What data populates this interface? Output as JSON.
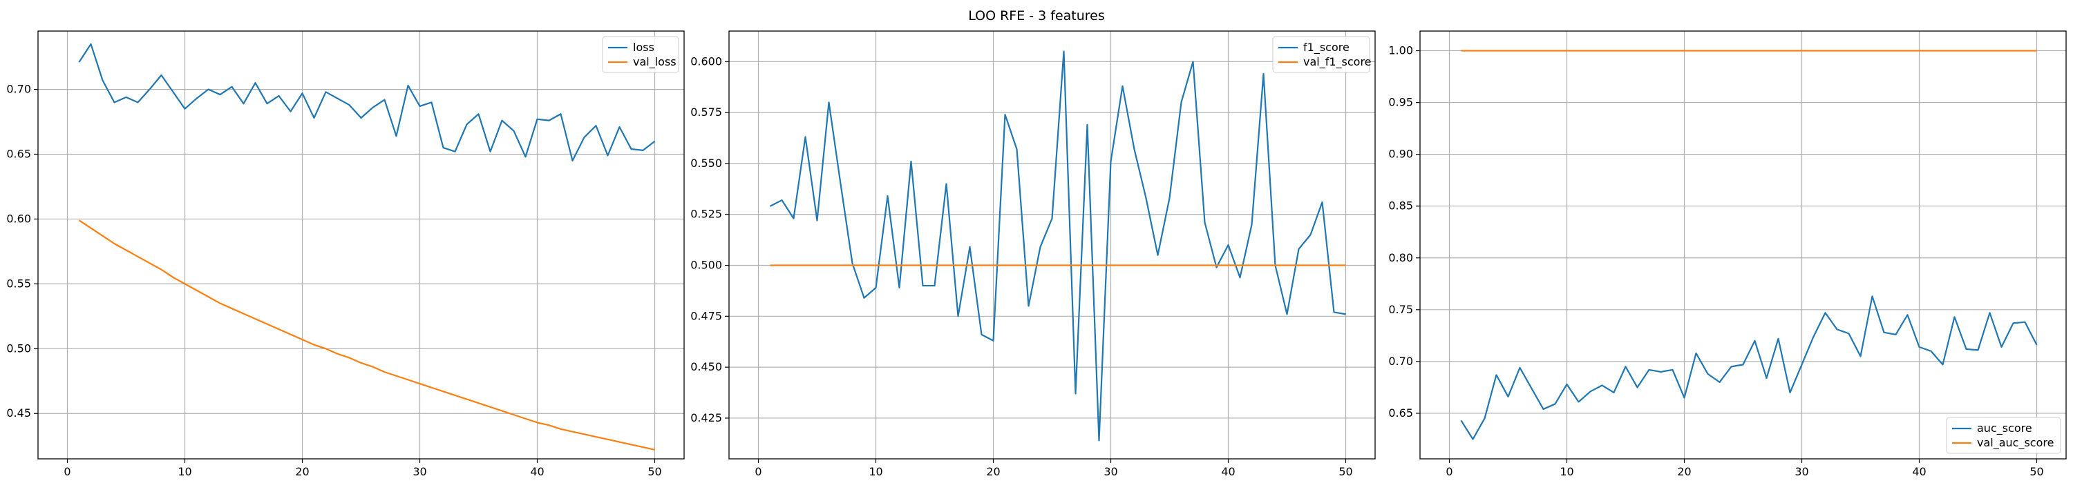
{
  "figure": {
    "title": "LOO RFE - 3 features"
  },
  "chart_data": [
    {
      "type": "line",
      "title": "",
      "xlabel": "",
      "ylabel": "",
      "xlim": [
        -2.5,
        52.5
      ],
      "ylim": [
        0.415,
        0.745
      ],
      "xticks": [
        0,
        10,
        20,
        30,
        40,
        50
      ],
      "yticks": [
        0.45,
        0.5,
        0.55,
        0.6,
        0.65,
        0.7
      ],
      "ytick_format": 2,
      "grid": true,
      "legend": "upper right",
      "x": [
        1,
        2,
        3,
        4,
        5,
        6,
        7,
        8,
        9,
        10,
        11,
        12,
        13,
        14,
        15,
        16,
        17,
        18,
        19,
        20,
        21,
        22,
        23,
        24,
        25,
        26,
        27,
        28,
        29,
        30,
        31,
        32,
        33,
        34,
        35,
        36,
        37,
        38,
        39,
        40,
        41,
        42,
        43,
        44,
        45,
        46,
        47,
        48,
        49,
        50
      ],
      "series": [
        {
          "name": "loss",
          "color": "#1f77b4",
          "values": [
            0.721,
            0.735,
            0.707,
            0.69,
            0.694,
            0.69,
            0.7,
            0.711,
            0.698,
            0.685,
            0.693,
            0.7,
            0.696,
            0.702,
            0.689,
            0.705,
            0.689,
            0.695,
            0.683,
            0.697,
            0.678,
            0.698,
            0.693,
            0.688,
            0.678,
            0.686,
            0.692,
            0.664,
            0.703,
            0.687,
            0.69,
            0.655,
            0.652,
            0.673,
            0.681,
            0.652,
            0.676,
            0.668,
            0.648,
            0.677,
            0.676,
            0.681,
            0.645,
            0.663,
            0.672,
            0.649,
            0.671,
            0.654,
            0.653,
            0.66
          ]
        },
        {
          "name": "val_loss",
          "color": "#ff7f0e",
          "values": [
            0.599,
            0.593,
            0.587,
            0.581,
            0.576,
            0.571,
            0.566,
            0.561,
            0.555,
            0.55,
            0.545,
            0.54,
            0.535,
            0.531,
            0.527,
            0.523,
            0.519,
            0.515,
            0.511,
            0.507,
            0.503,
            0.5,
            0.496,
            0.493,
            0.489,
            0.486,
            0.482,
            0.479,
            0.476,
            0.473,
            0.47,
            0.467,
            0.464,
            0.461,
            0.458,
            0.455,
            0.452,
            0.449,
            0.446,
            0.443,
            0.441,
            0.438,
            0.436,
            0.434,
            0.432,
            0.43,
            0.428,
            0.426,
            0.424,
            0.422
          ]
        }
      ]
    },
    {
      "type": "line",
      "title": "",
      "xlabel": "",
      "ylabel": "",
      "xlim": [
        -2.5,
        52.5
      ],
      "ylim": [
        0.405,
        0.615
      ],
      "xticks": [
        0,
        10,
        20,
        30,
        40,
        50
      ],
      "yticks": [
        0.425,
        0.45,
        0.475,
        0.5,
        0.525,
        0.55,
        0.575,
        0.6
      ],
      "ytick_format": 3,
      "grid": true,
      "legend": "upper right",
      "x": [
        1,
        2,
        3,
        4,
        5,
        6,
        7,
        8,
        9,
        10,
        11,
        12,
        13,
        14,
        15,
        16,
        17,
        18,
        19,
        20,
        21,
        22,
        23,
        24,
        25,
        26,
        27,
        28,
        29,
        30,
        31,
        32,
        33,
        34,
        35,
        36,
        37,
        38,
        39,
        40,
        41,
        42,
        43,
        44,
        45,
        46,
        47,
        48,
        49,
        50
      ],
      "series": [
        {
          "name": "f1_score",
          "color": "#1f77b4",
          "values": [
            0.529,
            0.532,
            0.523,
            0.563,
            0.522,
            0.58,
            0.54,
            0.501,
            0.484,
            0.489,
            0.534,
            0.489,
            0.551,
            0.49,
            0.49,
            0.54,
            0.475,
            0.509,
            0.466,
            0.463,
            0.574,
            0.557,
            0.48,
            0.509,
            0.523,
            0.605,
            0.437,
            0.569,
            0.414,
            0.551,
            0.588,
            0.557,
            0.533,
            0.505,
            0.533,
            0.58,
            0.6,
            0.521,
            0.499,
            0.51,
            0.494,
            0.52,
            0.594,
            0.5,
            0.476,
            0.508,
            0.515,
            0.531,
            0.477,
            0.476
          ]
        },
        {
          "name": "val_f1_score",
          "color": "#ff7f0e",
          "values": [
            0.5,
            0.5,
            0.5,
            0.5,
            0.5,
            0.5,
            0.5,
            0.5,
            0.5,
            0.5,
            0.5,
            0.5,
            0.5,
            0.5,
            0.5,
            0.5,
            0.5,
            0.5,
            0.5,
            0.5,
            0.5,
            0.5,
            0.5,
            0.5,
            0.5,
            0.5,
            0.5,
            0.5,
            0.5,
            0.5,
            0.5,
            0.5,
            0.5,
            0.5,
            0.5,
            0.5,
            0.5,
            0.5,
            0.5,
            0.5,
            0.5,
            0.5,
            0.5,
            0.5,
            0.5,
            0.5,
            0.5,
            0.5,
            0.5,
            0.5
          ]
        }
      ]
    },
    {
      "type": "line",
      "title": "",
      "xlabel": "",
      "ylabel": "",
      "xlim": [
        -2.5,
        52.5
      ],
      "ylim": [
        0.606,
        1.019
      ],
      "xticks": [
        0,
        10,
        20,
        30,
        40,
        50
      ],
      "yticks": [
        0.65,
        0.7,
        0.75,
        0.8,
        0.85,
        0.9,
        0.95,
        1.0
      ],
      "ytick_format": 2,
      "grid": true,
      "legend": "lower right",
      "x": [
        1,
        2,
        3,
        4,
        5,
        6,
        7,
        8,
        9,
        10,
        11,
        12,
        13,
        14,
        15,
        16,
        17,
        18,
        19,
        20,
        21,
        22,
        23,
        24,
        25,
        26,
        27,
        28,
        29,
        30,
        31,
        32,
        33,
        34,
        35,
        36,
        37,
        38,
        39,
        40,
        41,
        42,
        43,
        44,
        45,
        46,
        47,
        48,
        49,
        50
      ],
      "series": [
        {
          "name": "auc_score",
          "color": "#1f77b4",
          "values": [
            0.643,
            0.625,
            0.645,
            0.687,
            0.666,
            0.694,
            0.674,
            0.654,
            0.659,
            0.678,
            0.661,
            0.671,
            0.677,
            0.67,
            0.695,
            0.675,
            0.692,
            0.69,
            0.692,
            0.665,
            0.708,
            0.688,
            0.68,
            0.695,
            0.697,
            0.72,
            0.684,
            0.722,
            0.67,
            0.697,
            0.724,
            0.747,
            0.731,
            0.727,
            0.705,
            0.763,
            0.728,
            0.726,
            0.745,
            0.714,
            0.71,
            0.697,
            0.743,
            0.712,
            0.711,
            0.747,
            0.714,
            0.737,
            0.738,
            0.716
          ]
        },
        {
          "name": "val_auc_score",
          "color": "#ff7f0e",
          "values": [
            1.0,
            1.0,
            1.0,
            1.0,
            1.0,
            1.0,
            1.0,
            1.0,
            1.0,
            1.0,
            1.0,
            1.0,
            1.0,
            1.0,
            1.0,
            1.0,
            1.0,
            1.0,
            1.0,
            1.0,
            1.0,
            1.0,
            1.0,
            1.0,
            1.0,
            1.0,
            1.0,
            1.0,
            1.0,
            1.0,
            1.0,
            1.0,
            1.0,
            1.0,
            1.0,
            1.0,
            1.0,
            1.0,
            1.0,
            1.0,
            1.0,
            1.0,
            1.0,
            1.0,
            1.0,
            1.0,
            1.0,
            1.0,
            1.0,
            1.0
          ]
        }
      ]
    }
  ]
}
